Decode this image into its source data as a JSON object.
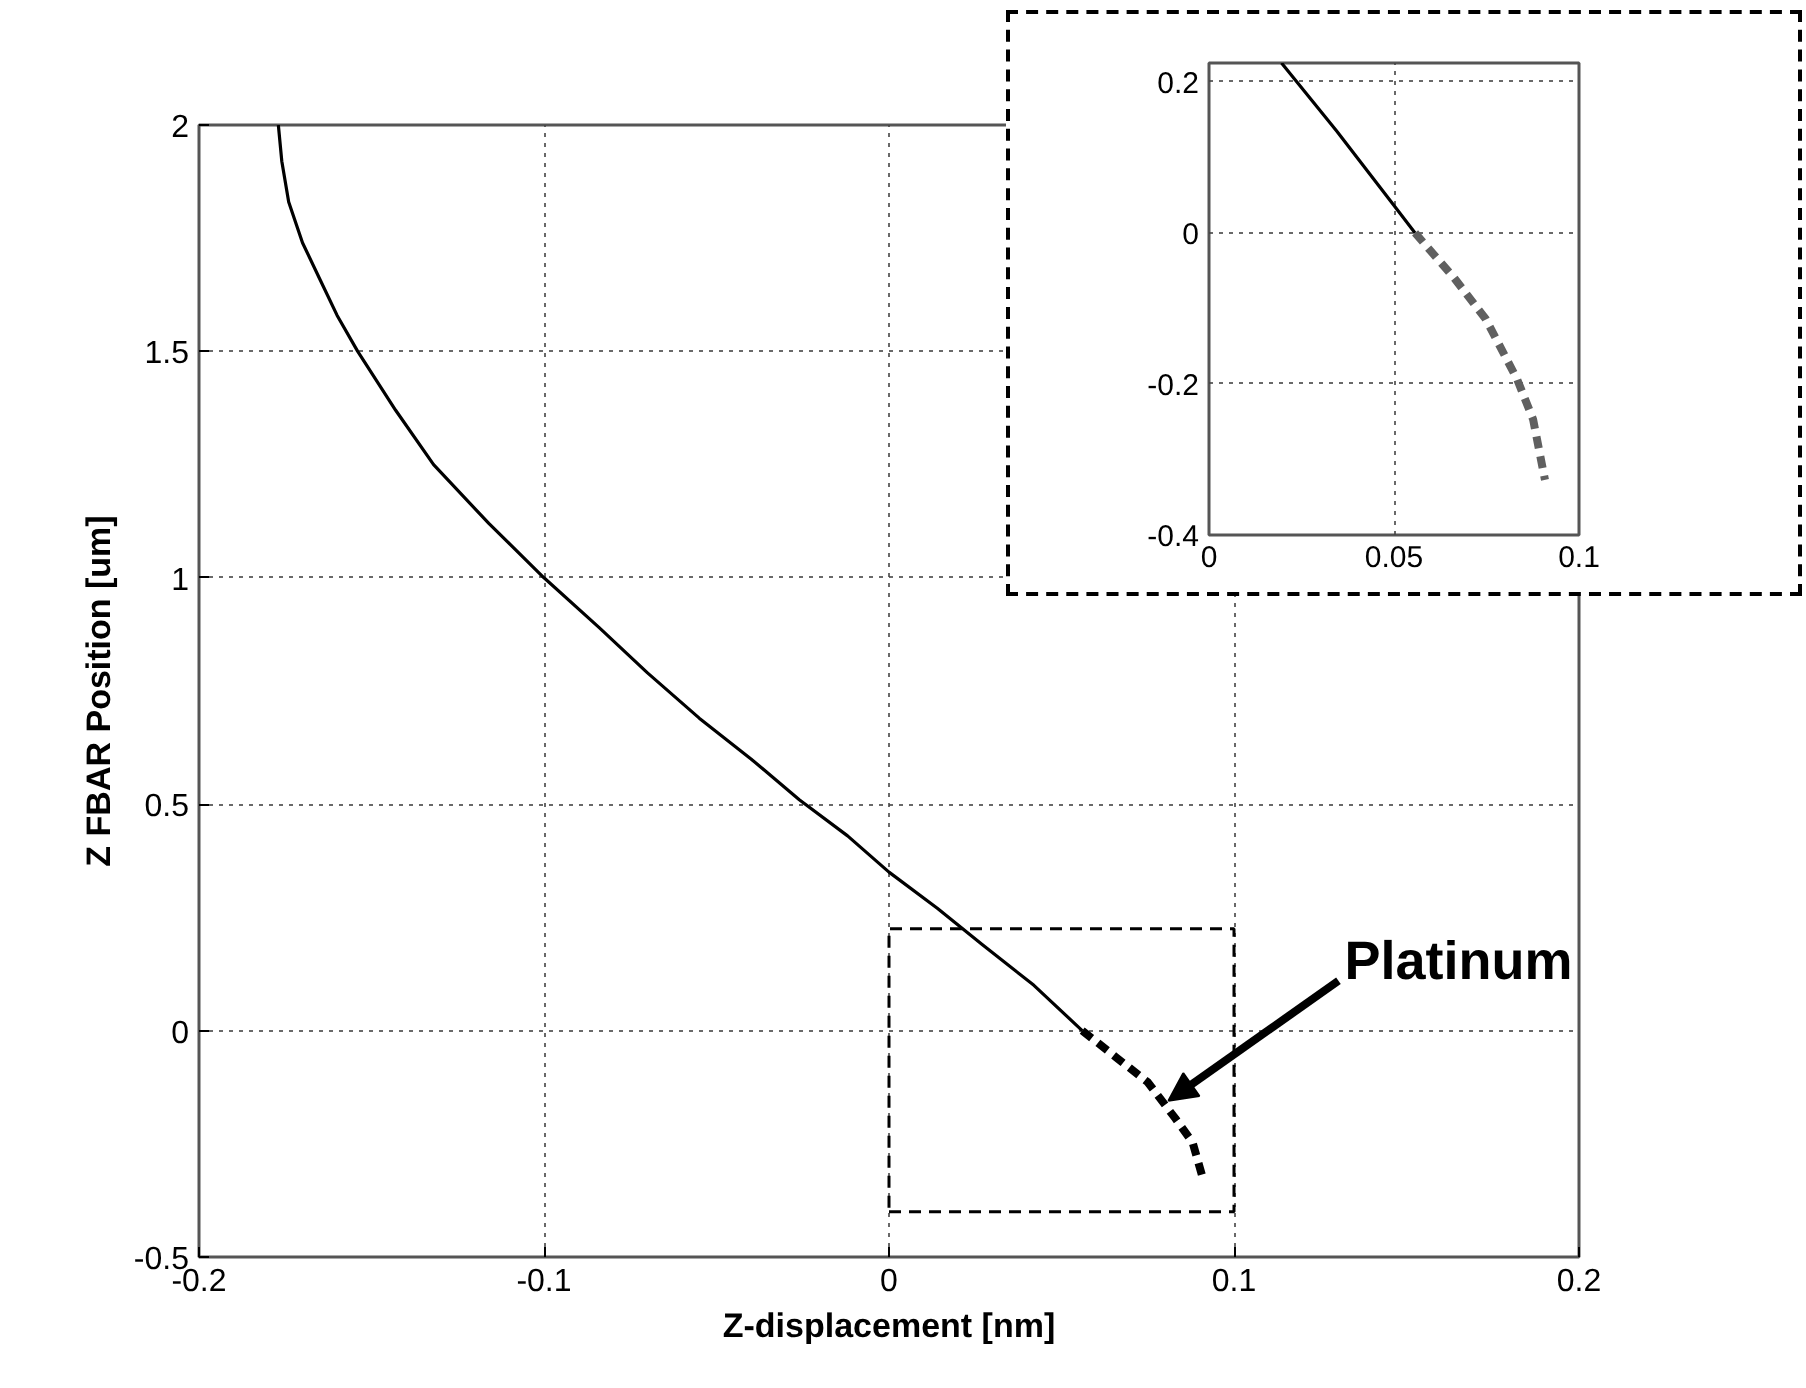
{
  "chart_data": [
    {
      "type": "line",
      "xlabel": "Z-displacement [nm]",
      "ylabel": "Z FBAR Position [um]",
      "xlim": [
        -0.2,
        0.2
      ],
      "ylim": [
        -0.5,
        2
      ],
      "xticks": [
        -0.2,
        -0.1,
        0,
        0.1,
        0.2
      ],
      "yticks": [
        -0.5,
        0,
        0.5,
        1,
        1.5,
        2
      ],
      "grid": true,
      "series": [
        {
          "color": "#000000",
          "line_style": "solid",
          "x": [
            -0.177,
            -0.176,
            -0.174,
            -0.17,
            -0.165,
            -0.16,
            -0.154,
            -0.143,
            -0.132,
            -0.116,
            -0.1,
            -0.084,
            -0.07,
            -0.055,
            -0.04,
            -0.026,
            -0.012,
            0,
            0.014,
            0.027,
            0.042,
            0.056
          ],
          "values": [
            2,
            1.92,
            1.83,
            1.74,
            1.66,
            1.58,
            1.5,
            1.37,
            1.25,
            1.12,
            1,
            0.89,
            0.79,
            0.69,
            0.6,
            0.51,
            0.43,
            0.35,
            0.27,
            0.19,
            0.1,
            0
          ]
        },
        {
          "color": "#000000",
          "line_style": "dashed",
          "x": [
            0.056,
            0.066,
            0.075,
            0.083,
            0.088,
            0.091
          ],
          "values": [
            0,
            -0.06,
            -0.114,
            -0.194,
            -0.247,
            -0.327
          ]
        }
      ],
      "annotations": [
        {
          "text": "Platinum",
          "x": 0.081,
          "y": -0.155
        }
      ]
    },
    {
      "type": "line",
      "xlim": [
        0,
        0.1
      ],
      "ylim": [
        -0.4,
        0.225
      ],
      "xticks": [
        0,
        0.05,
        0.1
      ],
      "yticks": [
        -0.4,
        -0.2,
        0,
        0.2
      ],
      "grid": true,
      "series": [
        {
          "color": "#000000",
          "line_style": "solid",
          "x": [
            0.0196,
            0.0345,
            0.0499,
            0.0557
          ],
          "values": [
            0.225,
            0.135,
            0.037,
            0
          ]
        },
        {
          "color": "#606060",
          "line_style": "dashed",
          "x": [
            0.0557,
            0.0663,
            0.0748,
            0.0833,
            0.0876,
            0.0908
          ],
          "values": [
            0,
            -0.06,
            -0.114,
            -0.194,
            -0.247,
            -0.327
          ]
        }
      ]
    }
  ]
}
